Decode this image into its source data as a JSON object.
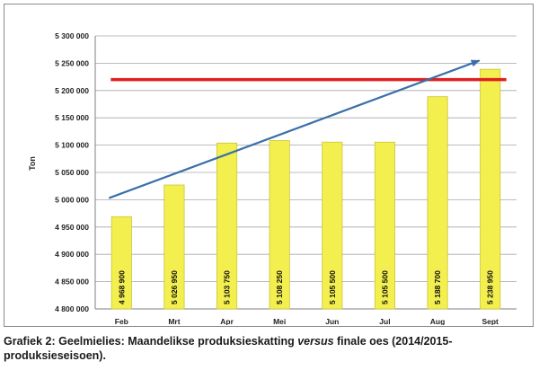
{
  "chart_data": {
    "type": "bar",
    "ylabel": "Ton",
    "categories": [
      "Feb",
      "Mrt",
      "Apr",
      "Mei",
      "Jun",
      "Jul",
      "Aug",
      "Sept"
    ],
    "values": [
      4968900,
      5026950,
      5103750,
      5108250,
      5105500,
      5105500,
      5188700,
      5238950
    ],
    "data_labels": [
      "4 968 900",
      "5 026 950",
      "5 103 750",
      "5 108 250",
      "5 105 500",
      "5 105 500",
      "5 188 700",
      "5 238 950"
    ],
    "ylim": [
      4800000,
      5300000
    ],
    "yticks": [
      4800000,
      4850000,
      4900000,
      4950000,
      5000000,
      5050000,
      5100000,
      5150000,
      5200000,
      5250000,
      5300000
    ],
    "ytick_labels": [
      "4 800 000",
      "4 850 000",
      "4 900 000",
      "4 950 000",
      "5 000 000",
      "5 050 000",
      "5 100 000",
      "5 150 000",
      "5 200 000",
      "5 250 000",
      "5 300 000"
    ],
    "reference_line": {
      "value": 5220000,
      "color": "#e02020"
    },
    "trend_arrow": {
      "from": {
        "x": "Feb",
        "y": 5003000
      },
      "to": {
        "x": "Sept",
        "y": 5255000
      },
      "color": "#3a6fa8"
    },
    "bar_color": "#f3ef4f",
    "grid": true,
    "legend": "none"
  },
  "caption": {
    "prefix": "Grafiek 2: Geelmielies: Maandelikse produksieskatting ",
    "emphasis": "versus",
    "suffix": " finale oes (2014/2015-produksieseisoen)."
  }
}
